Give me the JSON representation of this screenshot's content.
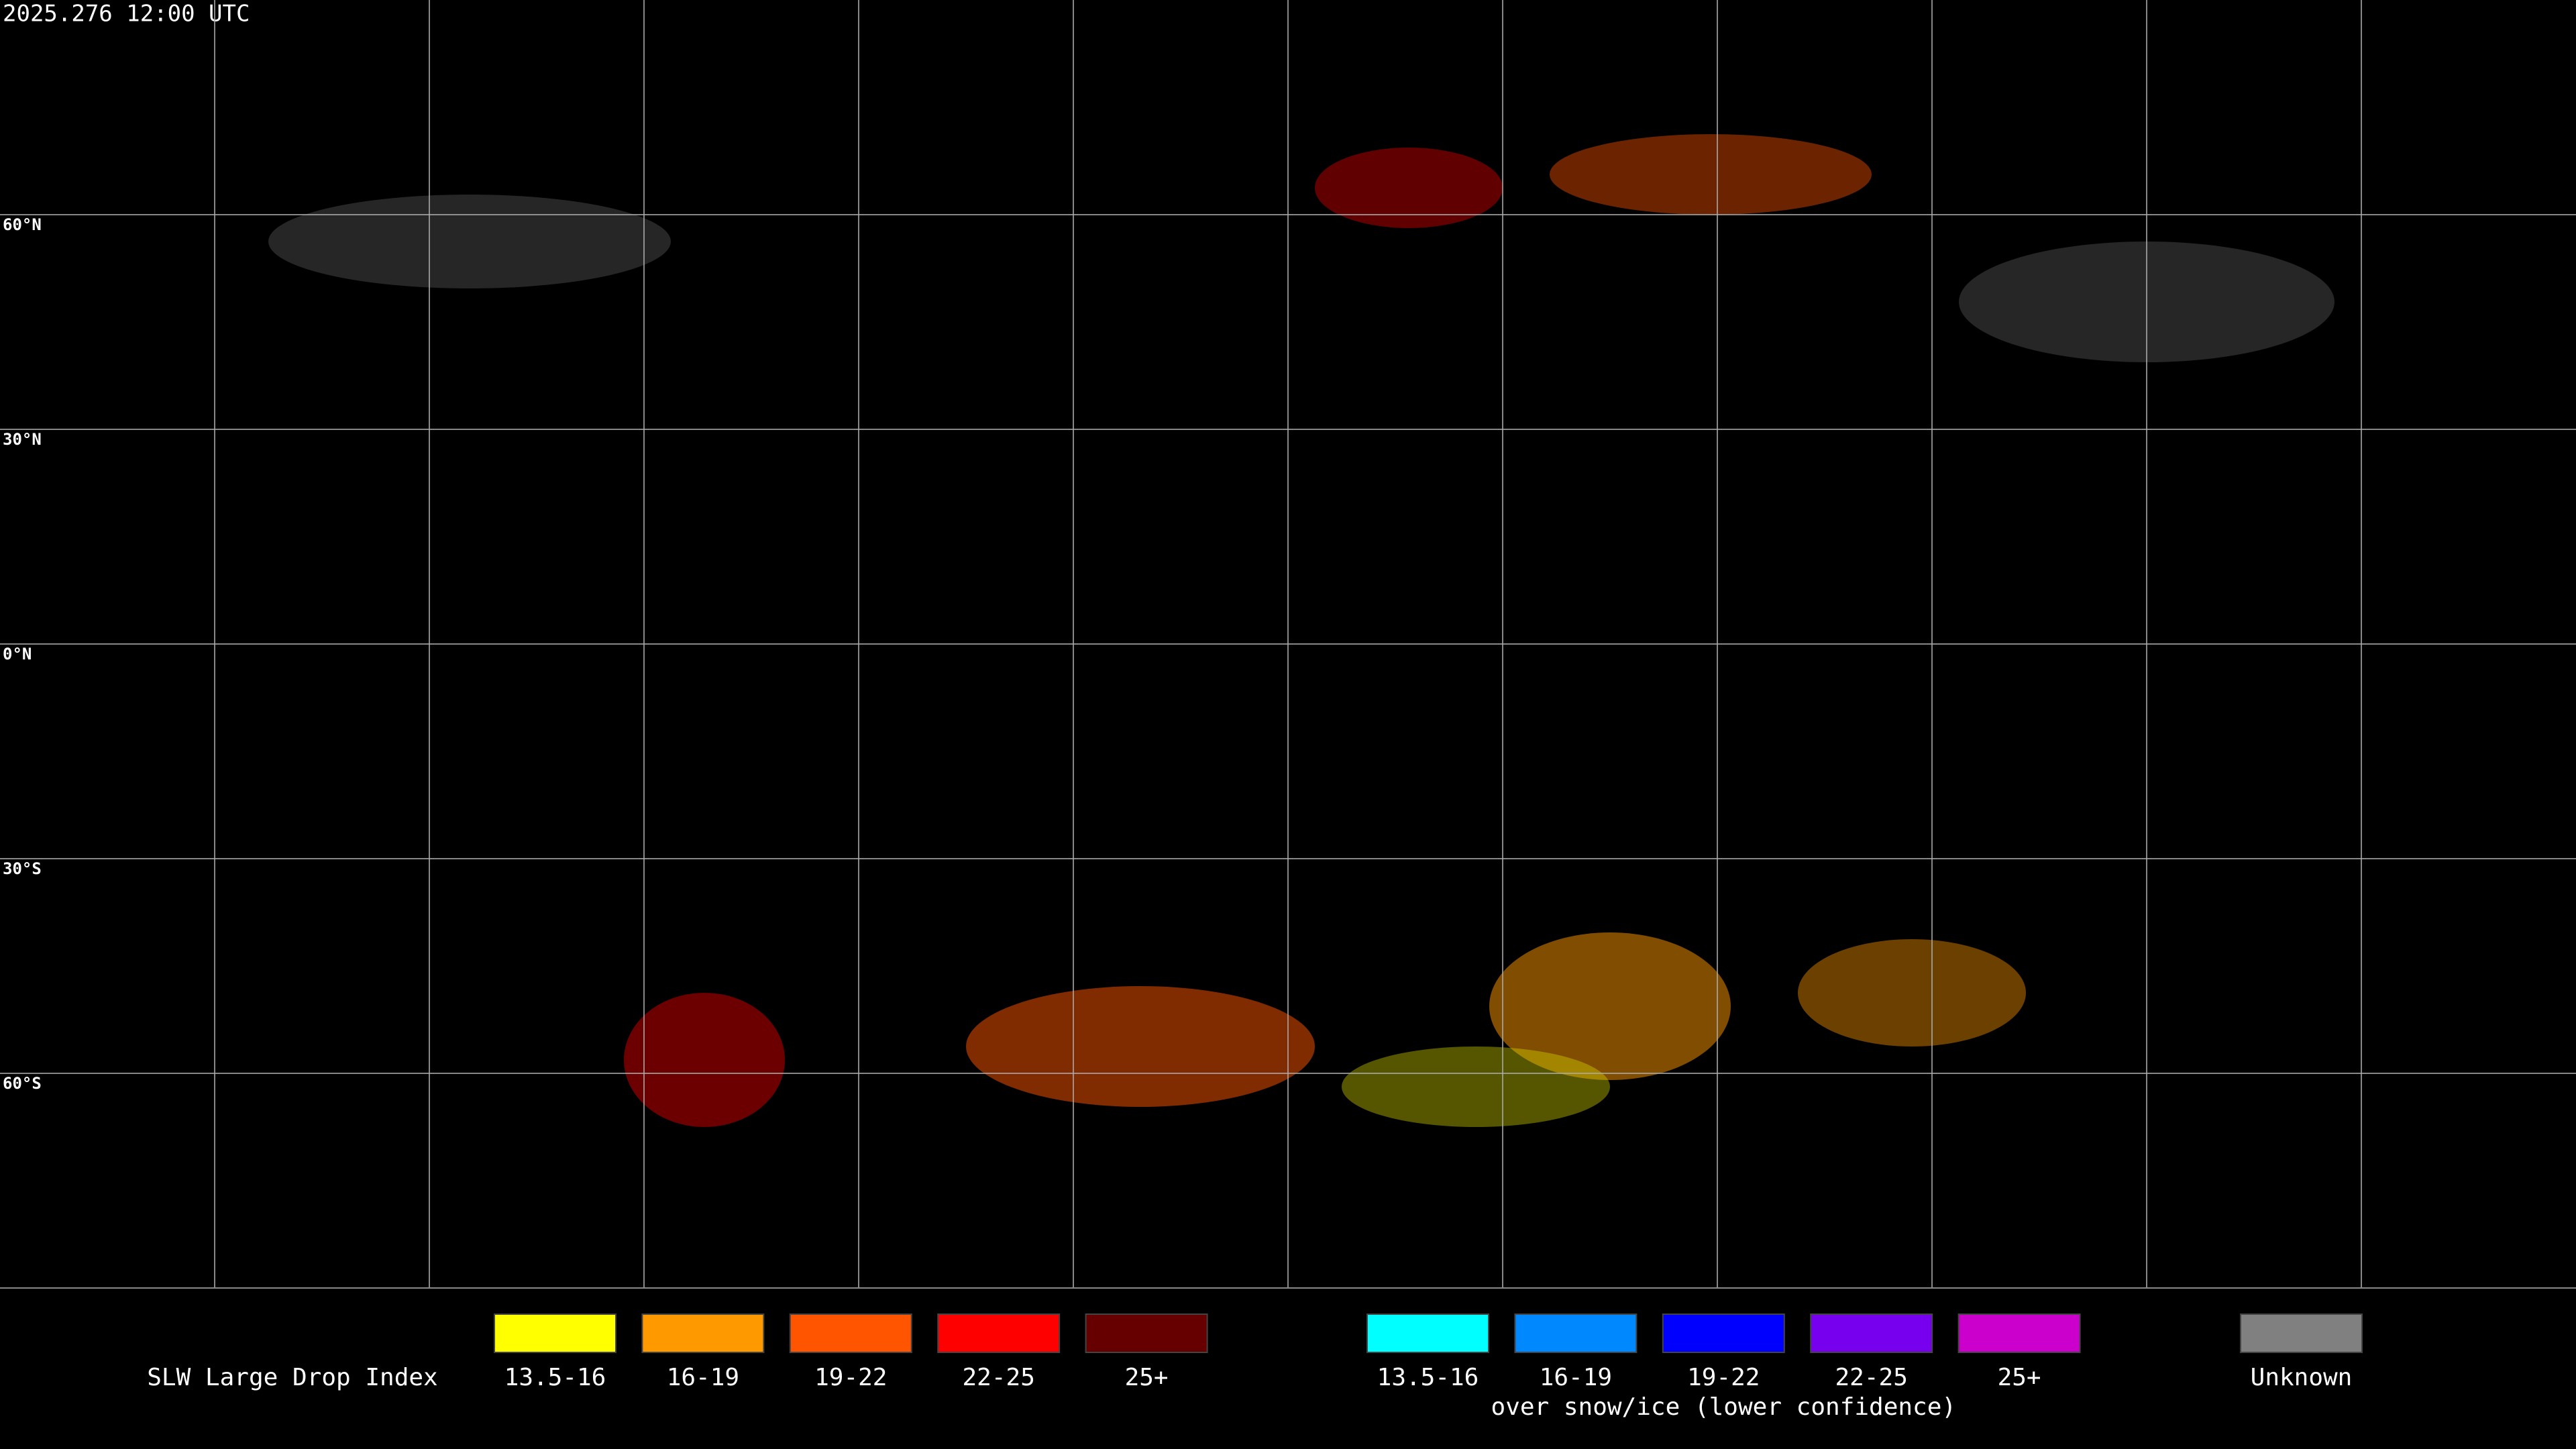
{
  "timestamp": "2025.276 12:00 UTC",
  "latitude_labels": [
    "60°N",
    "30°N",
    "0°N",
    "30°S",
    "60°S"
  ],
  "legend": {
    "title": "SLW Large Drop Index",
    "groups": [
      {
        "items": [
          {
            "label": "13.5-16",
            "color": "#ffff00"
          },
          {
            "label": "16-19",
            "color": "#ff9900"
          },
          {
            "label": "19-22",
            "color": "#ff5500"
          },
          {
            "label": "22-25",
            "color": "#ff0000"
          },
          {
            "label": "25+",
            "color": "#660000"
          }
        ]
      },
      {
        "items": [
          {
            "label": "13.5-16",
            "color": "#00ffff"
          },
          {
            "label": "16-19",
            "color": "#0088ff"
          },
          {
            "label": "19-22",
            "color": "#0000ff"
          },
          {
            "label": "22-25",
            "color": "#7700ee"
          },
          {
            "label": "25+",
            "color": "#cc00cc"
          }
        ],
        "caption": "over snow/ice (lower confidence)"
      },
      {
        "items": [
          {
            "label": "Unknown",
            "color": "#808080"
          }
        ]
      }
    ]
  }
}
